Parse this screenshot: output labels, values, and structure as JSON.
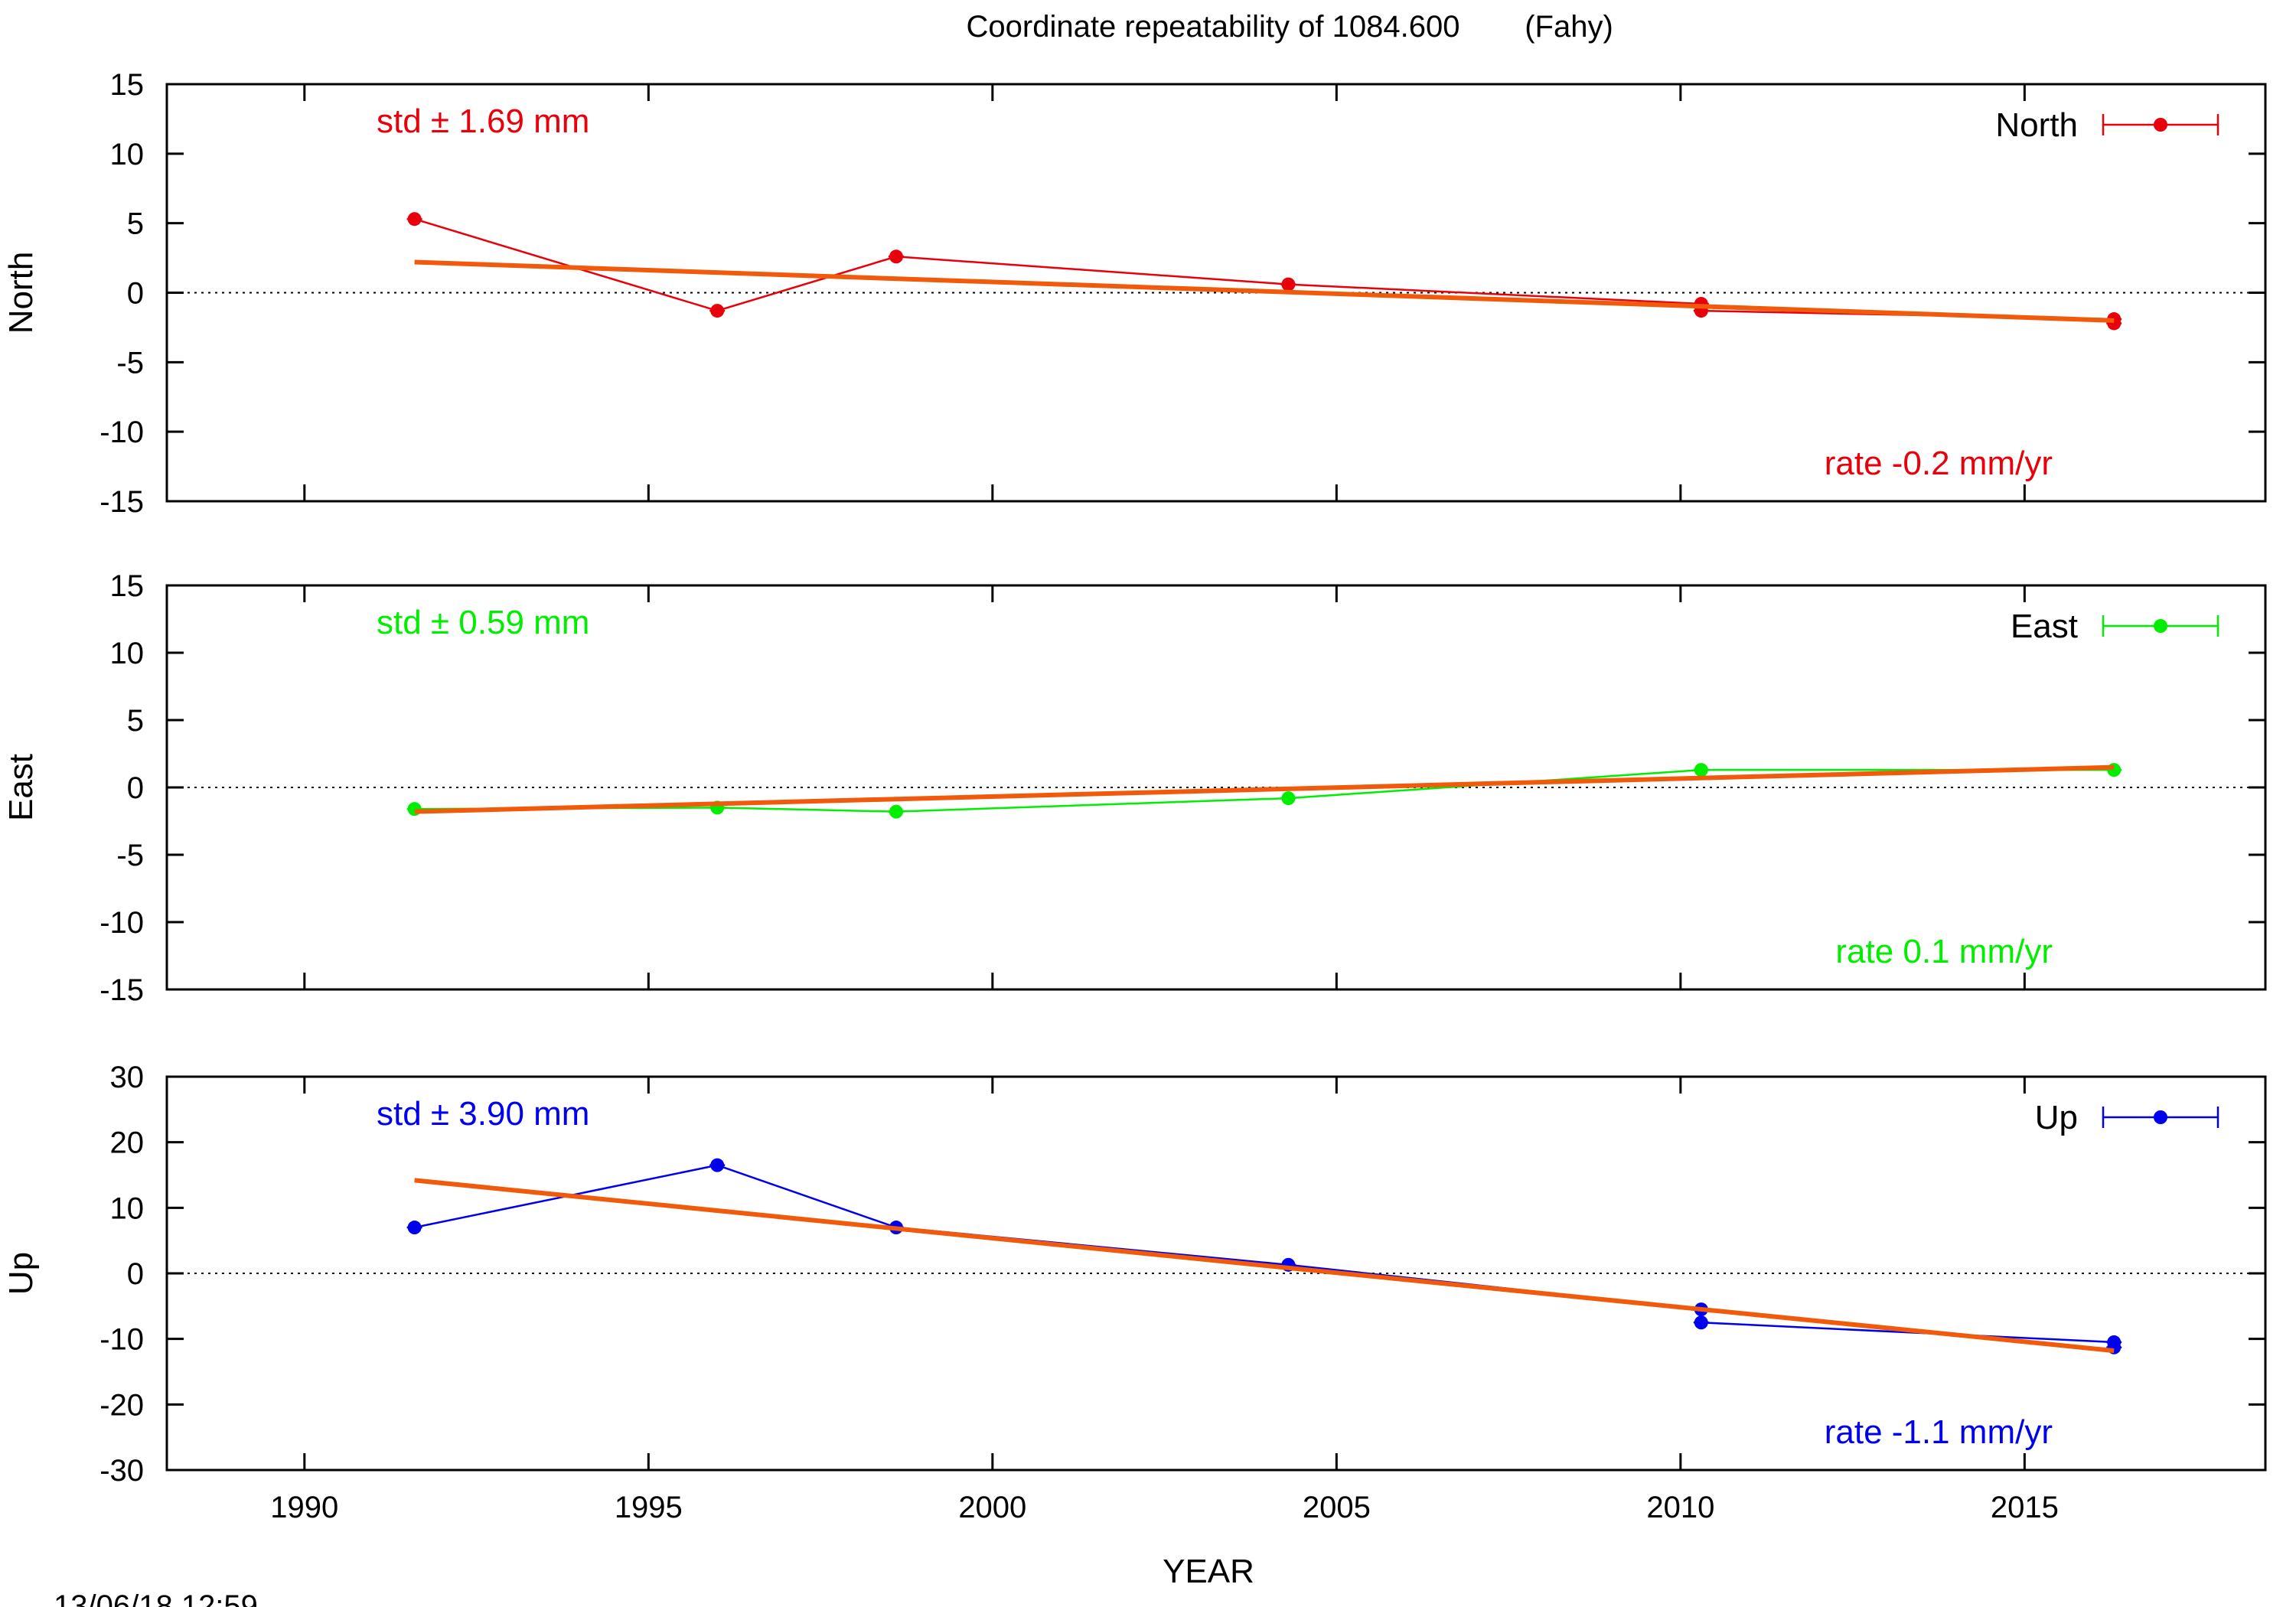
{
  "title": "Coordinate repeatability of 1084.600",
  "site": "(Fahy)",
  "timestamp": "13/06/18 12:59",
  "colors": {
    "fit": "#f05a0a",
    "zero_line": "#000000",
    "frame": "#000000"
  },
  "chart_data": [
    {
      "type": "line",
      "ylabel": "North",
      "xlabel": "",
      "xlim": [
        1988,
        2018.5
      ],
      "ylim": [
        -15,
        15
      ],
      "yticks": [
        15,
        10,
        5,
        0,
        -5,
        -10,
        -15
      ],
      "xticks": [],
      "color": "#e8000b",
      "legend": "North",
      "legend_position": "top-right",
      "std_text": "std ± 1.69 mm",
      "rate_text": "rate -0.2 mm/yr",
      "series": [
        {
          "name": "North",
          "x": [
            1991.6,
            1996.0,
            1998.6,
            2004.3,
            2010.3,
            2010.3,
            2016.3,
            2016.3
          ],
          "y": [
            5.3,
            -1.3,
            2.6,
            0.6,
            -0.8,
            -1.3,
            -1.9,
            -2.2
          ]
        }
      ],
      "fit": {
        "x": [
          1991.6,
          2016.3
        ],
        "y": [
          2.2,
          -2.0
        ]
      }
    },
    {
      "type": "line",
      "ylabel": "East",
      "xlabel": "",
      "xlim": [
        1988,
        2018.5
      ],
      "ylim": [
        -15,
        15
      ],
      "yticks": [
        15,
        10,
        5,
        0,
        -5,
        -10,
        -15
      ],
      "xticks": [],
      "color": "#00ee00",
      "legend": "East",
      "legend_position": "top-right",
      "std_text": "std ± 0.59 mm",
      "rate_text": "rate  0.1 mm/yr",
      "series": [
        {
          "name": "East",
          "x": [
            1991.6,
            1996.0,
            1998.6,
            2004.3,
            2010.3,
            2016.3
          ],
          "y": [
            -1.6,
            -1.5,
            -1.8,
            -0.8,
            1.3,
            1.3
          ]
        }
      ],
      "fit": {
        "x": [
          1991.6,
          2016.3
        ],
        "y": [
          -1.8,
          1.5
        ]
      }
    },
    {
      "type": "line",
      "ylabel": "Up",
      "xlabel": "YEAR",
      "xlim": [
        1988,
        2018.5
      ],
      "ylim": [
        -30,
        30
      ],
      "yticks": [
        30,
        20,
        10,
        0,
        -10,
        -20,
        -30
      ],
      "xticks": [
        1990,
        1995,
        2000,
        2005,
        2010,
        2015
      ],
      "color": "#0000ee",
      "legend": "Up",
      "legend_position": "top-right",
      "std_text": "std ± 3.90 mm",
      "rate_text": "rate -1.1 mm/yr",
      "series": [
        {
          "name": "Up",
          "x": [
            1991.6,
            1996.0,
            1998.6,
            2004.3,
            2010.3,
            2010.3,
            2016.3,
            2016.3
          ],
          "y": [
            7.0,
            16.5,
            7.0,
            1.3,
            -5.5,
            -7.5,
            -10.5,
            -11.3
          ]
        }
      ],
      "fit": {
        "x": [
          1991.6,
          2016.3
        ],
        "y": [
          14.2,
          -11.8
        ]
      }
    }
  ]
}
